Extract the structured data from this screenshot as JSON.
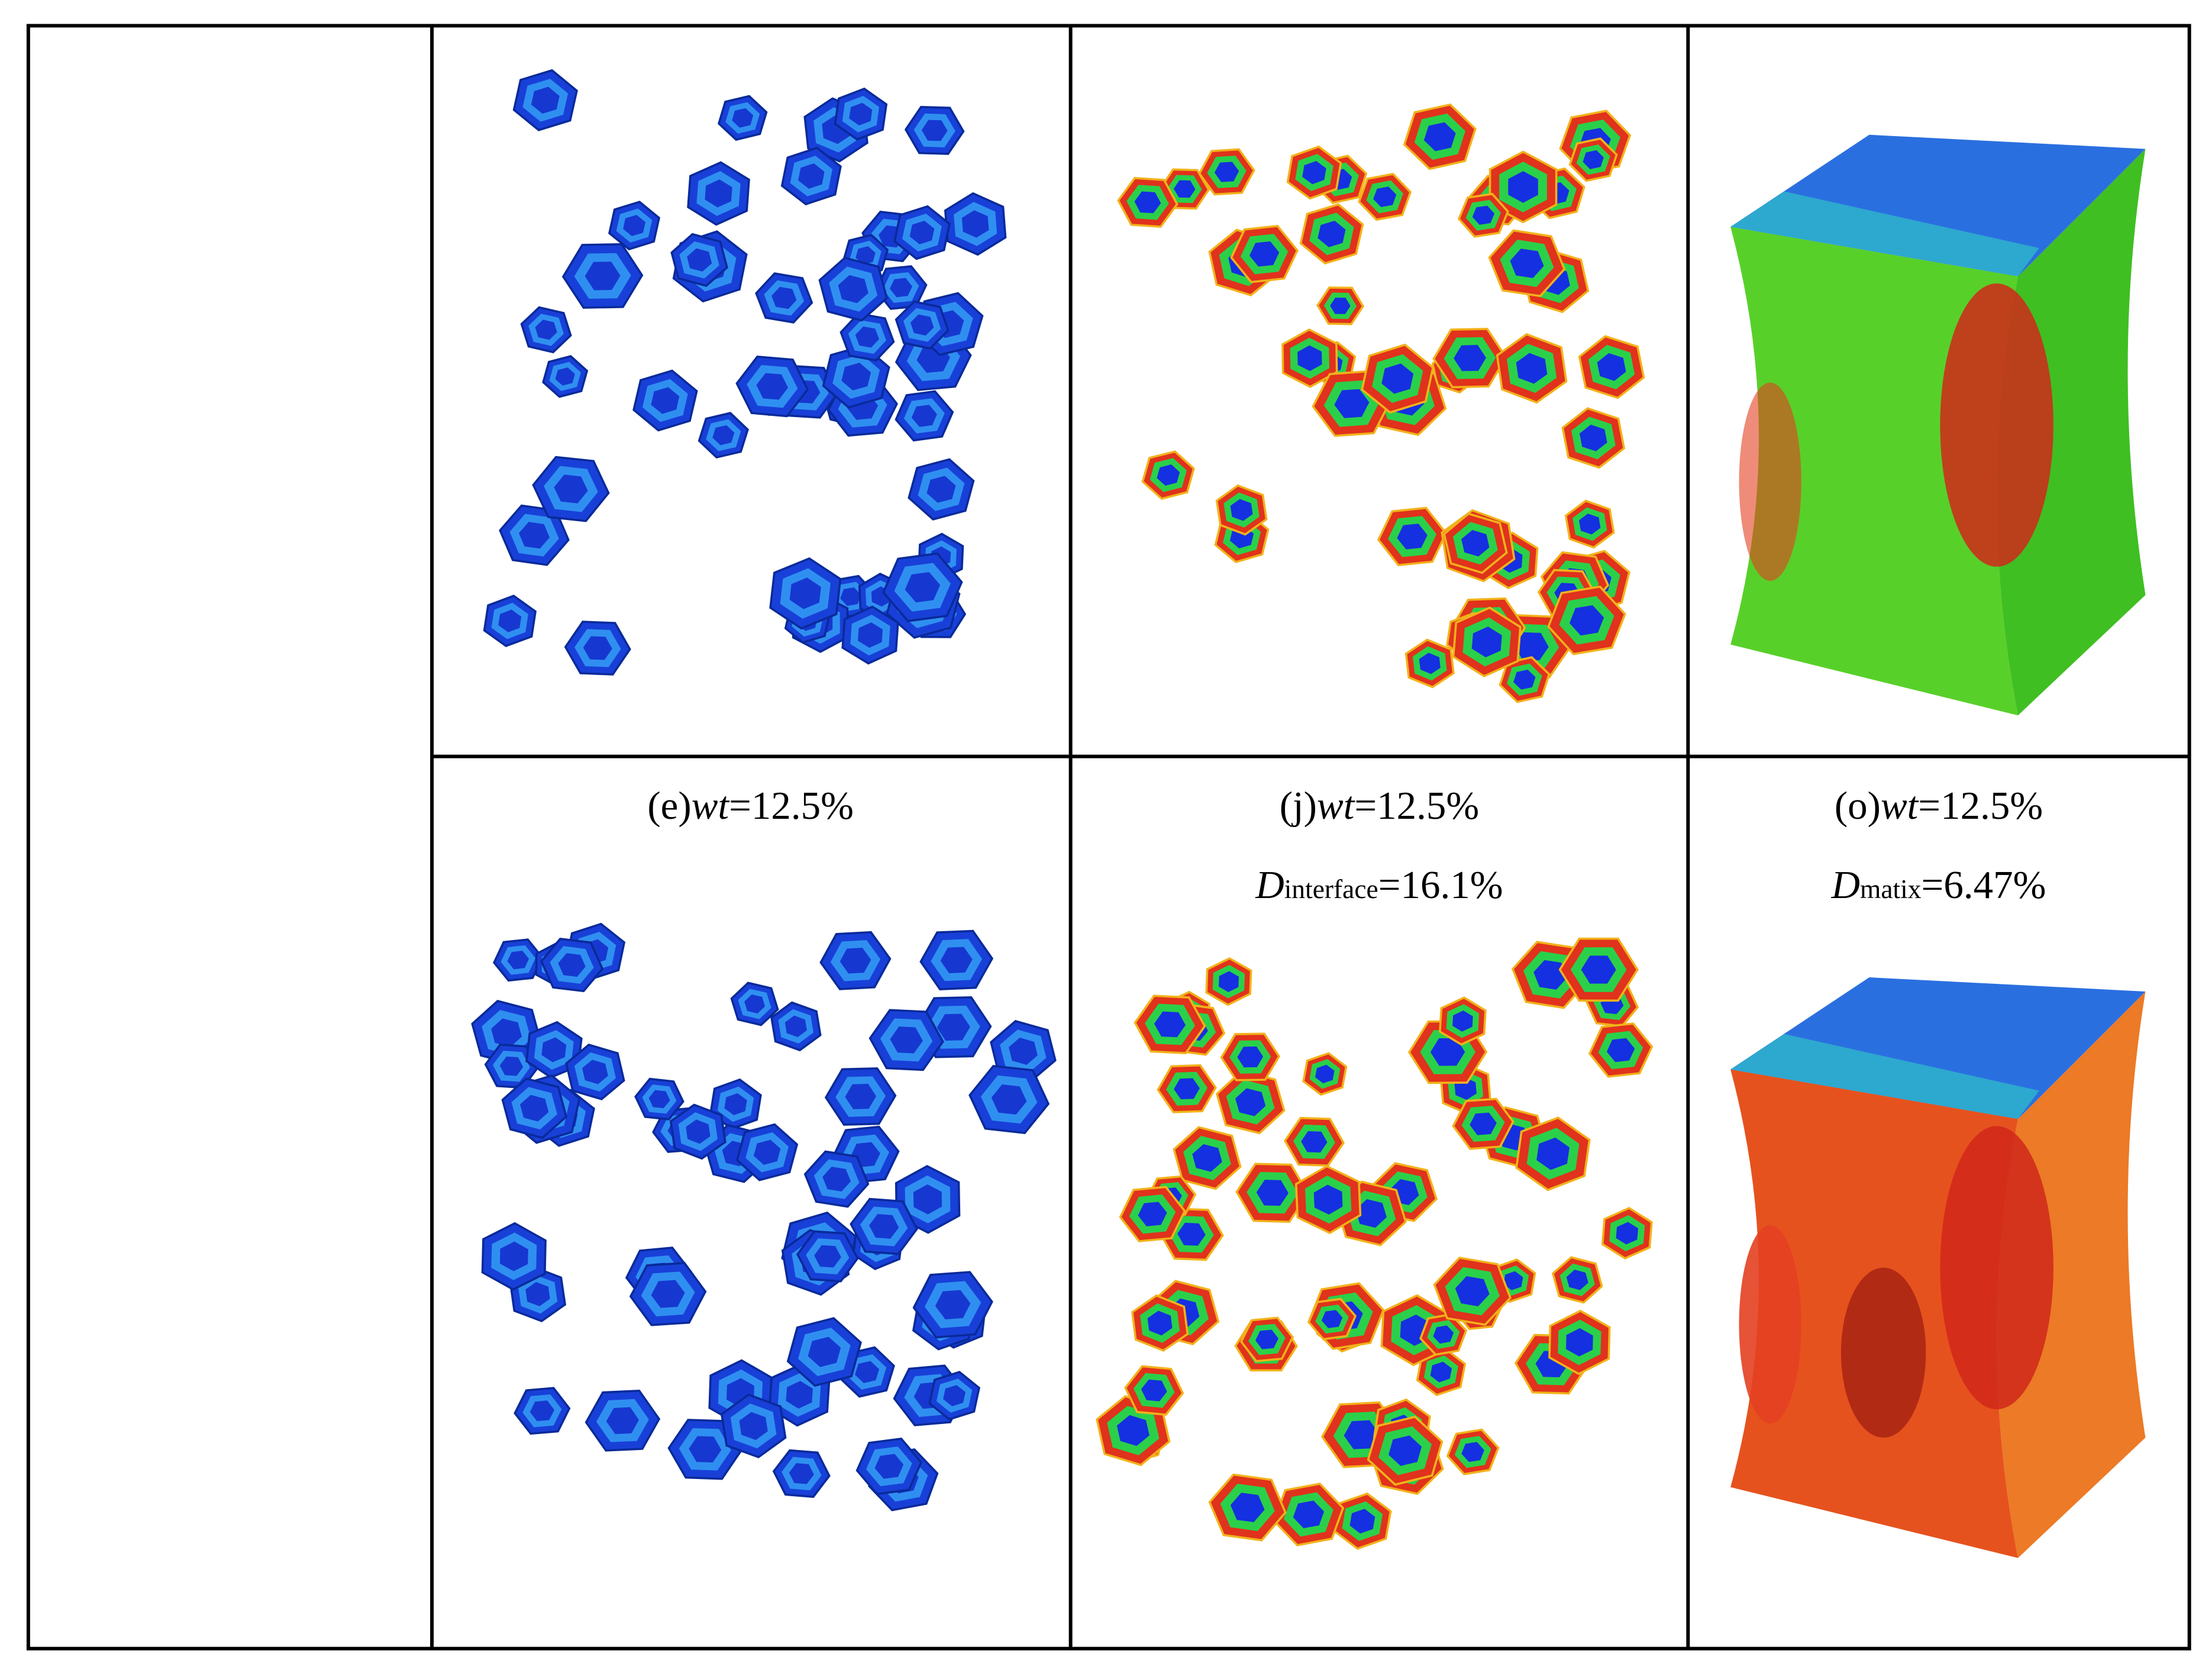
{
  "captions": [
    {
      "label": "(e)",
      "var": "wt",
      "value": "=12.5%"
    },
    {
      "label": "(j)",
      "var": "wt",
      "value": "=12.5%",
      "sub_var": "D",
      "sub_name": "interface",
      "sub_value": "=16.1%"
    },
    {
      "label": "(o)",
      "var": "wt",
      "value": "=12.5%",
      "sub_var": "D",
      "sub_name": "matix",
      "sub_value": "=6.47%"
    }
  ]
}
